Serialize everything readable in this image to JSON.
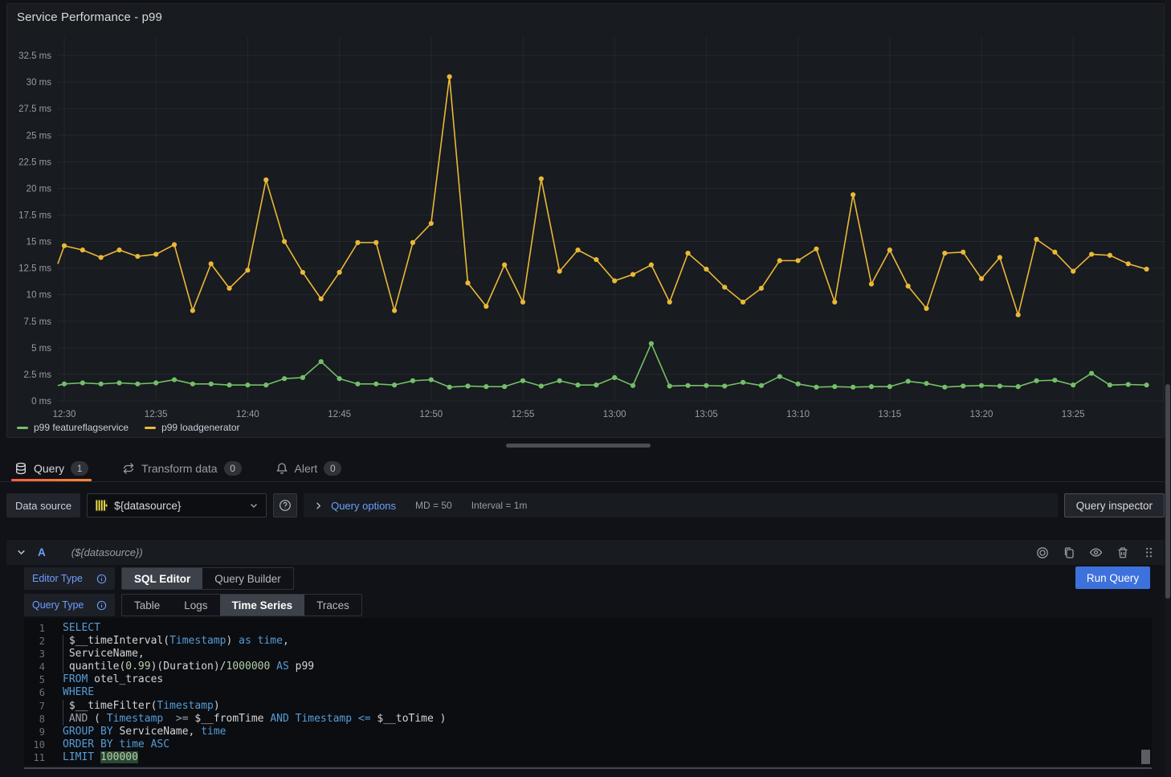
{
  "panel": {
    "title": "Service Performance - p99",
    "legend": [
      {
        "label": "p99 featureflagservice",
        "color": "#73BF69"
      },
      {
        "label": "p99 loadgenerator",
        "color": "#EAB839"
      }
    ]
  },
  "chart_data": {
    "type": "line",
    "title": "Service Performance - p99",
    "ylabel": "ms",
    "ylim": [
      0,
      34
    ],
    "grid": true,
    "legend_position": "bottom-left",
    "x_start": "12:30",
    "x_interval_minutes": 1,
    "y_ticks": [
      {
        "v": 0,
        "label": "0 ms"
      },
      {
        "v": 2.5,
        "label": "2.5 ms"
      },
      {
        "v": 5,
        "label": "5 ms"
      },
      {
        "v": 7.5,
        "label": "7.5 ms"
      },
      {
        "v": 10,
        "label": "10 ms"
      },
      {
        "v": 12.5,
        "label": "12.5 ms"
      },
      {
        "v": 15,
        "label": "15 ms"
      },
      {
        "v": 17.5,
        "label": "17.5 ms"
      },
      {
        "v": 20,
        "label": "20 ms"
      },
      {
        "v": 22.5,
        "label": "22.5 ms"
      },
      {
        "v": 25,
        "label": "25 ms"
      },
      {
        "v": 27.5,
        "label": "27.5 ms"
      },
      {
        "v": 30,
        "label": "30 ms"
      },
      {
        "v": 32.5,
        "label": "32.5 ms"
      }
    ],
    "x_ticks": [
      {
        "i": 0,
        "label": "12:30"
      },
      {
        "i": 5,
        "label": "12:35"
      },
      {
        "i": 10,
        "label": "12:40"
      },
      {
        "i": 15,
        "label": "12:45"
      },
      {
        "i": 20,
        "label": "12:50"
      },
      {
        "i": 25,
        "label": "12:55"
      },
      {
        "i": 30,
        "label": "13:00"
      },
      {
        "i": 35,
        "label": "13:05"
      },
      {
        "i": 40,
        "label": "13:10"
      },
      {
        "i": 45,
        "label": "13:15"
      },
      {
        "i": 50,
        "label": "13:20"
      },
      {
        "i": 55,
        "label": "13:25"
      }
    ],
    "series": [
      {
        "name": "p99 loadgenerator",
        "color": "#EAB839",
        "lead_in": 12.9,
        "values": [
          14.6,
          14.2,
          13.5,
          14.2,
          13.6,
          13.8,
          14.7,
          8.5,
          12.9,
          10.6,
          12.3,
          20.8,
          15.0,
          12.1,
          9.6,
          12.1,
          14.9,
          14.9,
          8.5,
          14.9,
          16.7,
          30.5,
          11.1,
          8.9,
          12.8,
          9.3,
          20.9,
          12.2,
          14.2,
          13.3,
          11.3,
          11.9,
          12.8,
          9.3,
          13.9,
          12.4,
          10.7,
          9.3,
          10.6,
          13.2,
          13.2,
          14.3,
          9.3,
          19.4,
          11.0,
          14.2,
          10.8,
          8.7,
          13.9,
          14.0,
          11.5,
          13.5,
          8.1,
          15.2,
          14.0,
          12.2,
          13.8,
          13.7,
          12.9,
          12.4
        ]
      },
      {
        "name": "p99 featureflagservice",
        "color": "#73BF69",
        "lead_in": 1.45,
        "values": [
          1.6,
          1.7,
          1.6,
          1.7,
          1.6,
          1.7,
          2.0,
          1.6,
          1.6,
          1.5,
          1.5,
          1.5,
          2.1,
          2.2,
          3.7,
          2.1,
          1.6,
          1.6,
          1.5,
          1.9,
          2.0,
          1.3,
          1.4,
          1.35,
          1.35,
          1.9,
          1.4,
          1.9,
          1.5,
          1.5,
          2.2,
          1.45,
          5.4,
          1.4,
          1.45,
          1.45,
          1.4,
          1.75,
          1.45,
          2.3,
          1.6,
          1.3,
          1.35,
          1.3,
          1.35,
          1.35,
          1.85,
          1.65,
          1.3,
          1.4,
          1.45,
          1.4,
          1.35,
          1.9,
          1.95,
          1.5,
          2.6,
          1.5,
          1.55,
          1.5
        ]
      }
    ]
  },
  "tabs": [
    {
      "label": "Query",
      "badge": "1",
      "icon": "database-icon",
      "active": true
    },
    {
      "label": "Transform data",
      "badge": "0",
      "icon": "transform-icon",
      "active": false
    },
    {
      "label": "Alert",
      "badge": "0",
      "icon": "bell-icon",
      "active": false
    }
  ],
  "toolbar": {
    "datasource_label": "Data source",
    "datasource_value": "${datasource}",
    "query_options_label": "Query options",
    "md": "MD = 50",
    "interval": "Interval = 1m",
    "query_inspector_label": "Query inspector"
  },
  "query_row": {
    "ref_id": "A",
    "datasource_hint": "(${datasource})"
  },
  "editor": {
    "editor_type_label": "Editor Type",
    "editor_type_options": [
      "SQL Editor",
      "Query Builder"
    ],
    "editor_type_selected": "SQL Editor",
    "query_type_label": "Query Type",
    "query_type_options": [
      "Table",
      "Logs",
      "Time Series",
      "Traces"
    ],
    "query_type_selected": "Time Series",
    "run_query_label": "Run Query"
  },
  "sql": {
    "lines": [
      {
        "n": 1,
        "guide": false,
        "tokens": [
          [
            "SELECT",
            "kw"
          ]
        ]
      },
      {
        "n": 2,
        "guide": true,
        "tokens": [
          [
            " $__timeInterval(",
            "id"
          ],
          [
            "Timestamp",
            "kw"
          ],
          [
            ") ",
            "id"
          ],
          [
            "as",
            "kw"
          ],
          [
            " ",
            "id"
          ],
          [
            "time",
            "kw"
          ],
          [
            ",",
            "id"
          ]
        ]
      },
      {
        "n": 3,
        "guide": true,
        "tokens": [
          [
            " ServiceName,",
            "id"
          ]
        ]
      },
      {
        "n": 4,
        "guide": true,
        "tokens": [
          [
            " quantile(",
            "id"
          ],
          [
            "0.99",
            "num"
          ],
          [
            ")(Duration)/",
            "id"
          ],
          [
            "1000000",
            "num"
          ],
          [
            " ",
            "id"
          ],
          [
            "AS",
            "kw"
          ],
          [
            " p99",
            "id"
          ]
        ]
      },
      {
        "n": 5,
        "guide": false,
        "tokens": [
          [
            "FROM",
            "kw"
          ],
          [
            " otel_traces",
            "id"
          ]
        ]
      },
      {
        "n": 6,
        "guide": false,
        "tokens": [
          [
            "WHERE",
            "kw"
          ]
        ]
      },
      {
        "n": 7,
        "guide": true,
        "tokens": [
          [
            " $__timeFilter(",
            "id"
          ],
          [
            "Timestamp",
            "kw"
          ],
          [
            ")",
            "id"
          ]
        ]
      },
      {
        "n": 8,
        "guide": true,
        "tokens": [
          [
            " ",
            "id"
          ],
          [
            "AND",
            "op"
          ],
          [
            " ( ",
            "id"
          ],
          [
            "Timestamp",
            "kw"
          ],
          [
            "  ",
            "id"
          ],
          [
            ">=",
            "op"
          ],
          [
            " ",
            "id"
          ],
          [
            "$__fromTime",
            "id"
          ],
          [
            " ",
            "id"
          ],
          [
            "AND",
            "kw"
          ],
          [
            " ",
            "id"
          ],
          [
            "Timestamp",
            "kw"
          ],
          [
            " ",
            "id"
          ],
          [
            "<=",
            "kw"
          ],
          [
            " ",
            "id"
          ],
          [
            "$__toTime )",
            "id"
          ]
        ]
      },
      {
        "n": 9,
        "guide": false,
        "tokens": [
          [
            "GROUP BY",
            "kw"
          ],
          [
            " ServiceName,",
            "id"
          ],
          [
            " ",
            "id"
          ],
          [
            "time",
            "kw"
          ]
        ]
      },
      {
        "n": 10,
        "guide": false,
        "tokens": [
          [
            "ORDER BY",
            "kw"
          ],
          [
            " ",
            "id"
          ],
          [
            "time",
            "kw"
          ],
          [
            " ",
            "id"
          ],
          [
            "ASC",
            "kw"
          ]
        ]
      },
      {
        "n": 11,
        "guide": false,
        "tokens": [
          [
            "LIMIT",
            "kw"
          ],
          [
            " ",
            "id"
          ],
          [
            "100000",
            "num",
            "sel"
          ]
        ]
      }
    ]
  }
}
